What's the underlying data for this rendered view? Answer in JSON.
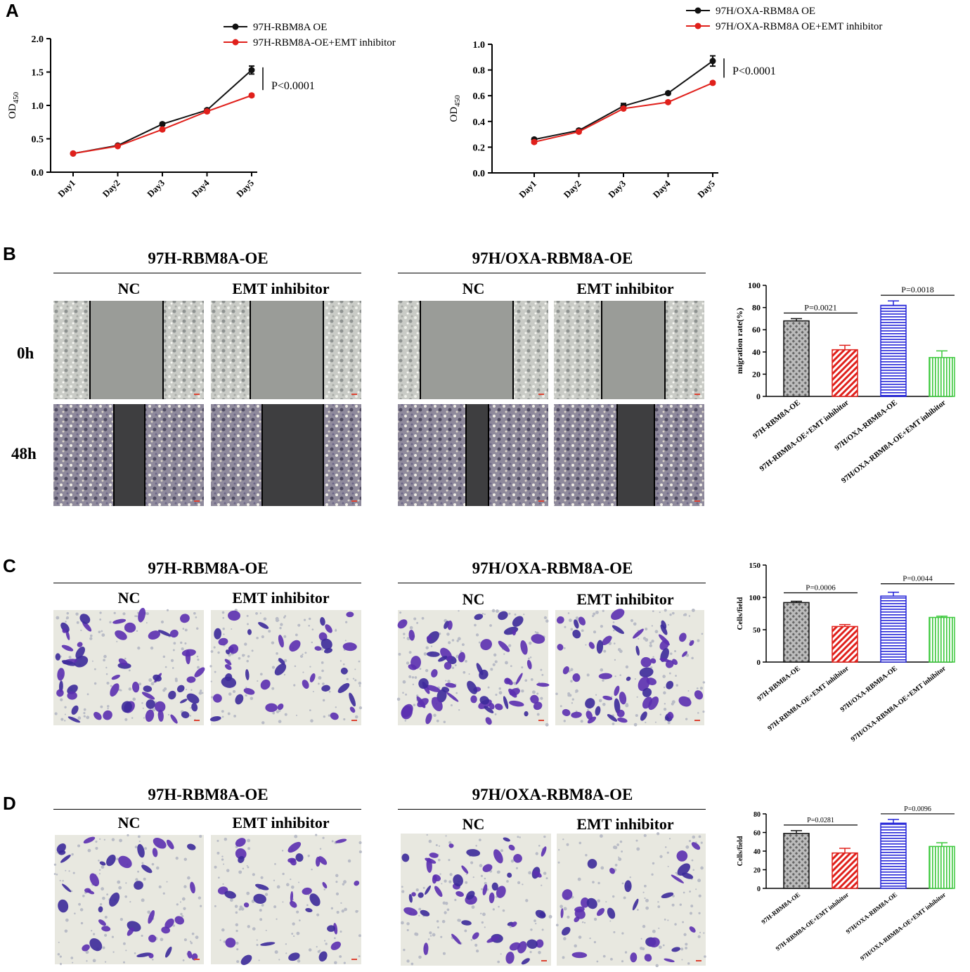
{
  "panels": {
    "A": "A",
    "B": "B",
    "C": "C",
    "D": "D"
  },
  "groups": {
    "left": "97H-RBM8A-OE",
    "right": "97H/OXA-RBM8A-OE"
  },
  "conditions": {
    "nc": "NC",
    "emt": "EMT inhibitor"
  },
  "timepoints": [
    "0h",
    "48h"
  ],
  "colors": {
    "black": "#111111",
    "red": "#e0201b",
    "blue": "#2424d8",
    "green": "#3cc83c",
    "purple": "#5b2fb0"
  },
  "chart_data": [
    {
      "id": "A1",
      "type": "line",
      "x": [
        "Day1",
        "Day2",
        "Day3",
        "Day4",
        "Day5"
      ],
      "ylabel": "OD450",
      "ylim": [
        0,
        2.0
      ],
      "yticks": [
        "0.0",
        "0.5",
        "1.0",
        "1.5",
        "2.0"
      ],
      "series": [
        {
          "name": "97H-RBM8A OE",
          "values": [
            0.28,
            0.4,
            0.72,
            0.93,
            1.53
          ],
          "err": [
            0.01,
            0.01,
            0.02,
            0.02,
            0.06
          ],
          "color": "#111111"
        },
        {
          "name": "97H-RBM8A-OE+EMT inhibitor",
          "values": [
            0.28,
            0.39,
            0.64,
            0.91,
            1.15
          ],
          "err": [
            0.01,
            0.01,
            0.02,
            0.02,
            0.02
          ],
          "color": "#e0201b"
        }
      ],
      "annotation": "P<0.0001"
    },
    {
      "id": "A2",
      "type": "line",
      "x": [
        "Day1",
        "Day2",
        "Day3",
        "Day4",
        "Day5"
      ],
      "ylabel": "OD450",
      "ylim": [
        0,
        1.0
      ],
      "yticks": [
        "0.0",
        "0.2",
        "0.4",
        "0.6",
        "0.8",
        "1.0"
      ],
      "series": [
        {
          "name": "97H/OXA-RBM8A OE",
          "values": [
            0.26,
            0.33,
            0.52,
            0.62,
            0.87
          ],
          "err": [
            0.01,
            0.01,
            0.02,
            0.01,
            0.04
          ],
          "color": "#111111"
        },
        {
          "name": "97H/OXA-RBM8A OE+EMT inhibitor",
          "values": [
            0.24,
            0.32,
            0.5,
            0.55,
            0.7
          ],
          "err": [
            0.01,
            0.01,
            0.01,
            0.01,
            0.01
          ],
          "color": "#e0201b"
        }
      ],
      "annotation": "P<0.0001"
    },
    {
      "id": "B",
      "type": "bar",
      "categories": [
        "97H-RBM8A-OE",
        "97H-RBM8A-OE+EMT inhibitor",
        "97H/OXA-RBM8A-OE",
        "97H/OXA-RBM8A-OE+EMT inhibitor"
      ],
      "values": [
        68,
        42,
        82,
        35
      ],
      "err": [
        2,
        4,
        4,
        6
      ],
      "ylabel": "migration rate(%)",
      "ylim": [
        0,
        100
      ],
      "yticks": [
        "0",
        "20",
        "40",
        "60",
        "80",
        "100"
      ],
      "pvalues": [
        "P=0.0021",
        "P=0.0018"
      ]
    },
    {
      "id": "C",
      "type": "bar",
      "categories": [
        "97H-RBM8A-OE",
        "97H-RBM8A-OE+EMT inhibitor",
        "97H/OXA-RBM8A-OE",
        "97H/OXA-RBM8A-OE+EMT inhibitor"
      ],
      "values": [
        92,
        55,
        102,
        69
      ],
      "err": [
        2,
        3,
        6,
        2
      ],
      "ylabel": "Cells/field",
      "ylim": [
        0,
        150
      ],
      "yticks": [
        "0",
        "50",
        "100",
        "150"
      ],
      "pvalues": [
        "P=0.0006",
        "P=0.0044"
      ]
    },
    {
      "id": "D",
      "type": "bar",
      "categories": [
        "97H-RBM8A-OE",
        "97H-RBM8A-OE+EMT inhibitor",
        "97H/OXA-RBM8A-OE",
        "97H/OXA-RBM8A-OE+EMT inhibitor"
      ],
      "values": [
        59,
        38,
        70,
        45
      ],
      "err": [
        3,
        5,
        4,
        4
      ],
      "ylabel": "Cells/field",
      "ylim": [
        0,
        80
      ],
      "yticks": [
        "0",
        "20",
        "40",
        "60",
        "80"
      ],
      "pvalues": [
        "P=0.0281",
        "P=0.0096"
      ]
    }
  ]
}
